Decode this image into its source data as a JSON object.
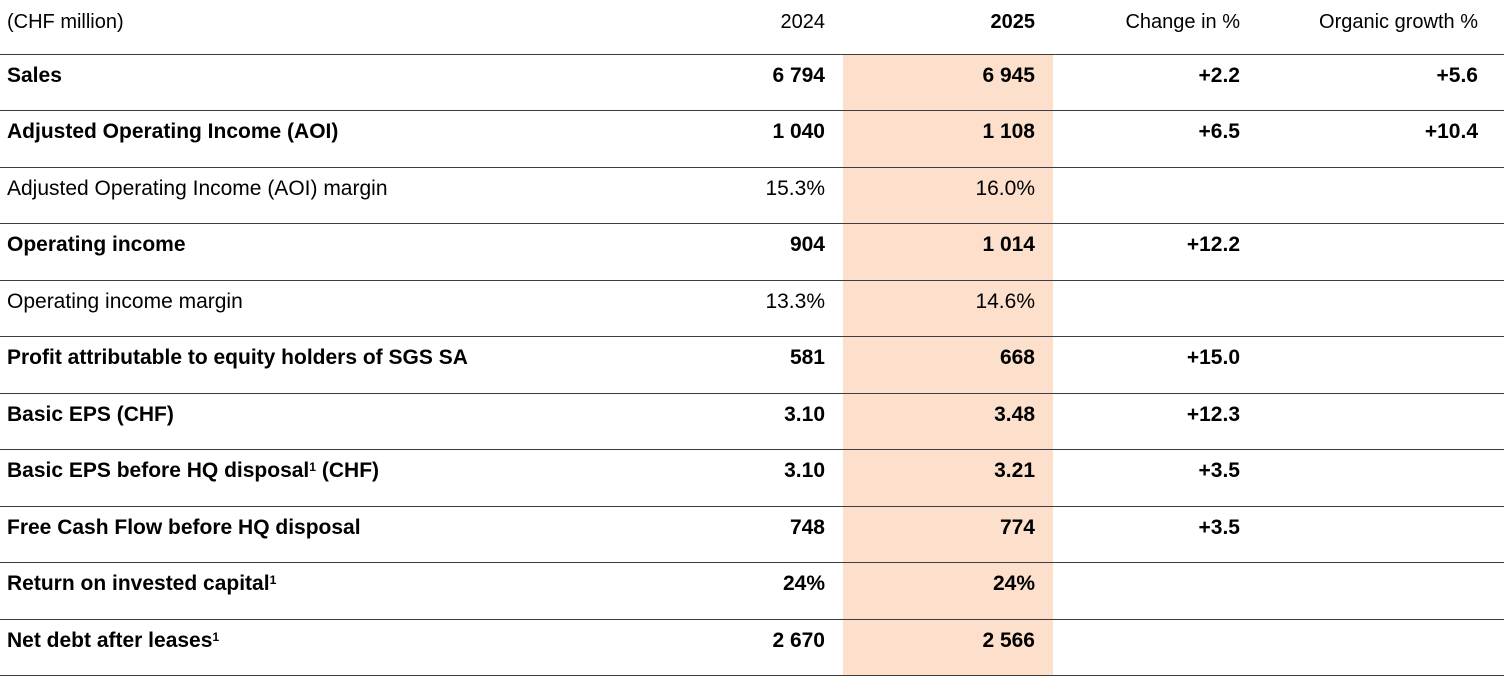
{
  "colors": {
    "highlight": "#fce0cc",
    "rule": "#3d3d3d",
    "text": "#000000"
  },
  "table": {
    "unit_label": "(CHF million)",
    "columns": [
      "2024",
      "2025",
      "Change in %",
      "Organic growth %"
    ],
    "rows": [
      {
        "label": "Sales",
        "sup": "",
        "suffix": "",
        "bold": true,
        "y2024": "6 794",
        "y2025": "6 945",
        "change": "+2.2",
        "organic": "+5.6"
      },
      {
        "label": "Adjusted Operating Income (AOI)",
        "sup": "",
        "suffix": "",
        "bold": true,
        "y2024": "1 040",
        "y2025": "1 108",
        "change": "+6.5",
        "organic": "+10.4"
      },
      {
        "label": "Adjusted Operating Income (AOI) margin",
        "sup": "",
        "suffix": "",
        "bold": false,
        "y2024": "15.3%",
        "y2025": "16.0%",
        "change": "",
        "organic": ""
      },
      {
        "label": "Operating income",
        "sup": "",
        "suffix": "",
        "bold": true,
        "y2024": "904",
        "y2025": "1 014",
        "change": "+12.2",
        "organic": ""
      },
      {
        "label": "Operating income margin",
        "sup": "",
        "suffix": "",
        "bold": false,
        "y2024": "13.3%",
        "y2025": "14.6%",
        "change": "",
        "organic": ""
      },
      {
        "label": "Profit attributable to equity holders of SGS SA",
        "sup": "",
        "suffix": "",
        "bold": true,
        "y2024": "581",
        "y2025": "668",
        "change": "+15.0",
        "organic": ""
      },
      {
        "label": "Basic EPS (CHF)",
        "sup": "",
        "suffix": "",
        "bold": true,
        "y2024": "3.10",
        "y2025": "3.48",
        "change": "+12.3",
        "organic": ""
      },
      {
        "label": "Basic EPS before HQ disposal",
        "sup": "1",
        "suffix": " (CHF)",
        "bold": true,
        "y2024": "3.10",
        "y2025": "3.21",
        "change": "+3.5",
        "organic": ""
      },
      {
        "label": "Free Cash Flow before HQ disposal",
        "sup": "",
        "suffix": "",
        "bold": true,
        "y2024": "748",
        "y2025": "774",
        "change": "+3.5",
        "organic": ""
      },
      {
        "label": "Return on invested capital",
        "sup": "1",
        "suffix": "",
        "bold": true,
        "y2024": "24%",
        "y2025": "24%",
        "change": "",
        "organic": ""
      },
      {
        "label": "Net debt after leases",
        "sup": "1",
        "suffix": "",
        "bold": true,
        "y2024": "2 670",
        "y2025": "2 566",
        "change": "",
        "organic": ""
      }
    ]
  }
}
